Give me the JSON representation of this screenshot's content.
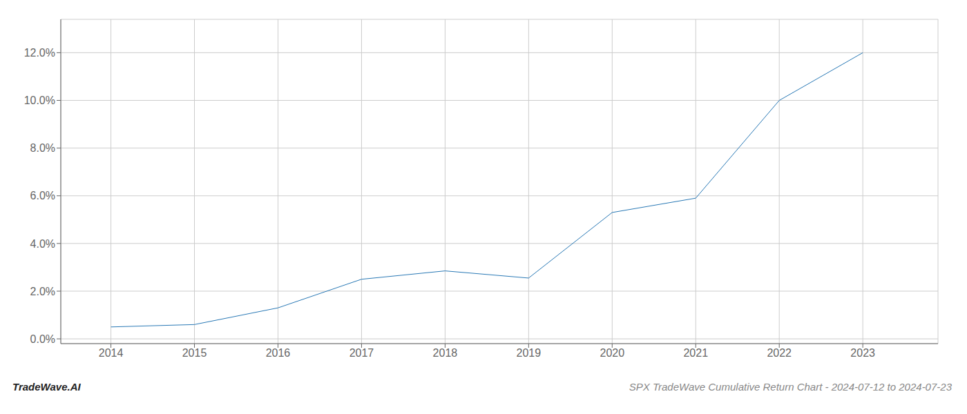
{
  "chart_data": {
    "type": "line",
    "title": "SPX TradeWave Cumulative Return Chart - 2024-07-12 to 2024-07-23",
    "annotations": [
      "TradeWave.AI"
    ],
    "x": [
      2014,
      2015,
      2016,
      2017,
      2018,
      2019,
      2020,
      2021,
      2022,
      2023
    ],
    "values": [
      0.005,
      0.006,
      0.013,
      0.025,
      0.0285,
      0.0255,
      0.053,
      0.059,
      0.1,
      0.12
    ],
    "color": "#2878b5",
    "xlim": [
      2013.4,
      2023.9
    ],
    "xticks": [
      2014,
      2015,
      2016,
      2017,
      2018,
      2019,
      2020,
      2021,
      2022,
      2023
    ],
    "ylim": [
      -0.002,
      0.134
    ],
    "yticks": [
      {
        "value": 0.0,
        "label": "0.0%"
      },
      {
        "value": 0.02,
        "label": "2.0%"
      },
      {
        "value": 0.04,
        "label": "4.0%"
      },
      {
        "value": 0.06,
        "label": "6.0%"
      },
      {
        "value": 0.08,
        "label": "8.0%"
      },
      {
        "value": 0.1,
        "label": "10.0%"
      },
      {
        "value": 0.12,
        "label": "12.0%"
      }
    ],
    "grid": true
  }
}
